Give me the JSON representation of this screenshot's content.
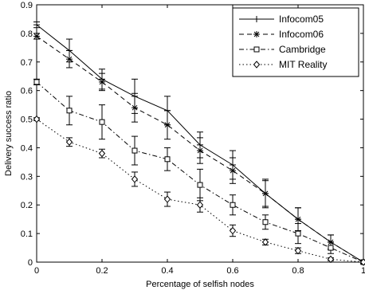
{
  "chart_data": {
    "type": "line",
    "title": "",
    "xlabel": "Percentage of selfish nodes",
    "ylabel": "Delivery success ratio",
    "xlim": [
      0,
      1
    ],
    "ylim": [
      0,
      0.9
    ],
    "x_ticks": [
      {
        "value": 0,
        "label": "0"
      },
      {
        "value": 0.2,
        "label": "0.2"
      },
      {
        "value": 0.4,
        "label": "0.4"
      },
      {
        "value": 0.6,
        "label": "0.6"
      },
      {
        "value": 0.8,
        "label": "0.8"
      },
      {
        "value": 1,
        "label": "1"
      }
    ],
    "y_ticks": [
      {
        "value": 0,
        "label": "0"
      },
      {
        "value": 0.1,
        "label": "0.1"
      },
      {
        "value": 0.2,
        "label": "0.2"
      },
      {
        "value": 0.3,
        "label": "0.3"
      },
      {
        "value": 0.4,
        "label": "0.4"
      },
      {
        "value": 0.5,
        "label": "0.5"
      },
      {
        "value": 0.6,
        "label": "0.6"
      },
      {
        "value": 0.7,
        "label": "0.7"
      },
      {
        "value": 0.8,
        "label": "0.8"
      },
      {
        "value": 0.9,
        "label": "0.9"
      }
    ],
    "grid": false,
    "legend_position": "top-right",
    "x": [
      0,
      0.1,
      0.2,
      0.3,
      0.4,
      0.5,
      0.6,
      0.7,
      0.8,
      0.9,
      1.0
    ],
    "series": [
      {
        "name": "Infocom05",
        "marker": "plus",
        "line_style": "solid",
        "values": [
          0.83,
          0.74,
          0.64,
          0.58,
          0.53,
          0.41,
          0.34,
          0.24,
          0.15,
          0.07,
          0.0
        ],
        "errors": [
          0.01,
          0.04,
          0.035,
          0.06,
          0.05,
          0.045,
          0.05,
          0.05,
          0.04,
          0.025,
          0.005
        ]
      },
      {
        "name": "Infocom06",
        "marker": "star",
        "line_style": "dashed",
        "values": [
          0.79,
          0.71,
          0.63,
          0.54,
          0.48,
          0.39,
          0.32,
          0.24,
          0.15,
          0.07,
          0.0
        ],
        "errors": [
          0.01,
          0.03,
          0.03,
          0.05,
          0.05,
          0.045,
          0.045,
          0.045,
          0.04,
          0.025,
          0.005
        ]
      },
      {
        "name": "Cambridge",
        "marker": "square",
        "line_style": "dashdot",
        "values": [
          0.63,
          0.53,
          0.49,
          0.39,
          0.36,
          0.27,
          0.2,
          0.14,
          0.1,
          0.05,
          0.0
        ],
        "errors": [
          0.01,
          0.05,
          0.06,
          0.05,
          0.04,
          0.055,
          0.035,
          0.025,
          0.035,
          0.02,
          0.005
        ]
      },
      {
        "name": "MIT Reality",
        "marker": "diamond",
        "line_style": "dotted",
        "values": [
          0.5,
          0.42,
          0.38,
          0.29,
          0.22,
          0.2,
          0.11,
          0.07,
          0.04,
          0.01,
          0.0
        ],
        "errors": [
          0.005,
          0.015,
          0.015,
          0.025,
          0.025,
          0.025,
          0.02,
          0.01,
          0.01,
          0.005,
          0.005
        ]
      }
    ]
  }
}
